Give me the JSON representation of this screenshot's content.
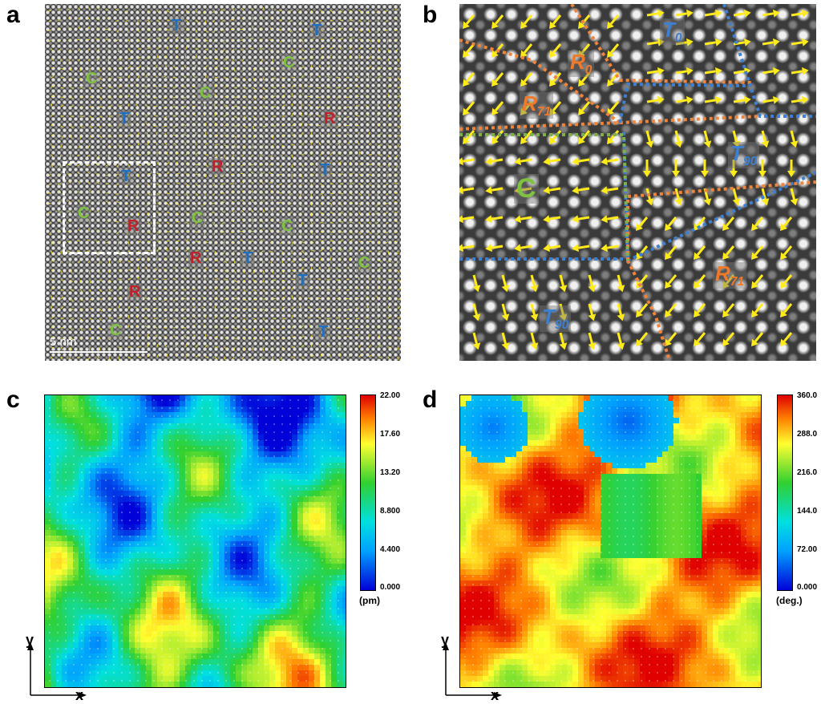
{
  "panels": {
    "a": {
      "letter": "a",
      "scale_bar": "5 nm"
    },
    "b": {
      "letter": "b"
    },
    "c": {
      "letter": "c",
      "unit": "(pm)",
      "ticks": [
        "22.00",
        "17.60",
        "13.20",
        "8.800",
        "4.400",
        "0.000"
      ]
    },
    "d": {
      "letter": "d",
      "unit": "(deg.)",
      "ticks": [
        "360.0",
        "288.0",
        "216.0",
        "144.0",
        "72.00",
        "0.000"
      ]
    }
  },
  "panel_a_labels": [
    {
      "text": "T",
      "color": "#1f6fc1"
    },
    {
      "text": "T",
      "color": "#1f6fc1"
    },
    {
      "text": "C",
      "color": "#7fc241"
    },
    {
      "text": "C",
      "color": "#7fc241"
    },
    {
      "text": "C",
      "color": "#7fc241"
    },
    {
      "text": "T",
      "color": "#1f6fc1"
    },
    {
      "text": "R",
      "color": "#c0202a"
    },
    {
      "text": "R",
      "color": "#c0202a"
    },
    {
      "text": "T",
      "color": "#1f6fc1"
    },
    {
      "text": "T",
      "color": "#1f6fc1"
    },
    {
      "text": "C",
      "color": "#7fc241"
    },
    {
      "text": "R",
      "color": "#c0202a"
    },
    {
      "text": "C",
      "color": "#7fc241"
    },
    {
      "text": "C",
      "color": "#7fc241"
    },
    {
      "text": "R",
      "color": "#c0202a"
    },
    {
      "text": "T",
      "color": "#1f6fc1"
    },
    {
      "text": "C",
      "color": "#7fc241"
    },
    {
      "text": "T",
      "color": "#1f6fc1"
    },
    {
      "text": "R",
      "color": "#c0202a"
    },
    {
      "text": "C",
      "color": "#7fc241"
    },
    {
      "text": "T",
      "color": "#1f6fc1"
    }
  ],
  "panel_b_labels": {
    "t0": {
      "main": "T",
      "sub": "0"
    },
    "r0": {
      "main": "R",
      "sub": "0"
    },
    "r71_top": {
      "main": "R",
      "sub": "71"
    },
    "t90_right": {
      "main": "T",
      "sub": "90"
    },
    "c": {
      "main": "C"
    },
    "r71_bottom": {
      "main": "R",
      "sub": "71"
    },
    "t90_bottom": {
      "main": "T",
      "sub": "90"
    }
  },
  "axes": {
    "y": "y",
    "x": "x"
  },
  "colors": {
    "t": "#1f6fc1",
    "c": "#7fc241",
    "r": "#c0202a",
    "r_orange": "#f07a2a",
    "arrow_yellow": "#ffeb1a",
    "dash_orange": "#f0843a",
    "dash_blue": "#3d7fd0",
    "dash_green": "#7fb04a"
  }
}
